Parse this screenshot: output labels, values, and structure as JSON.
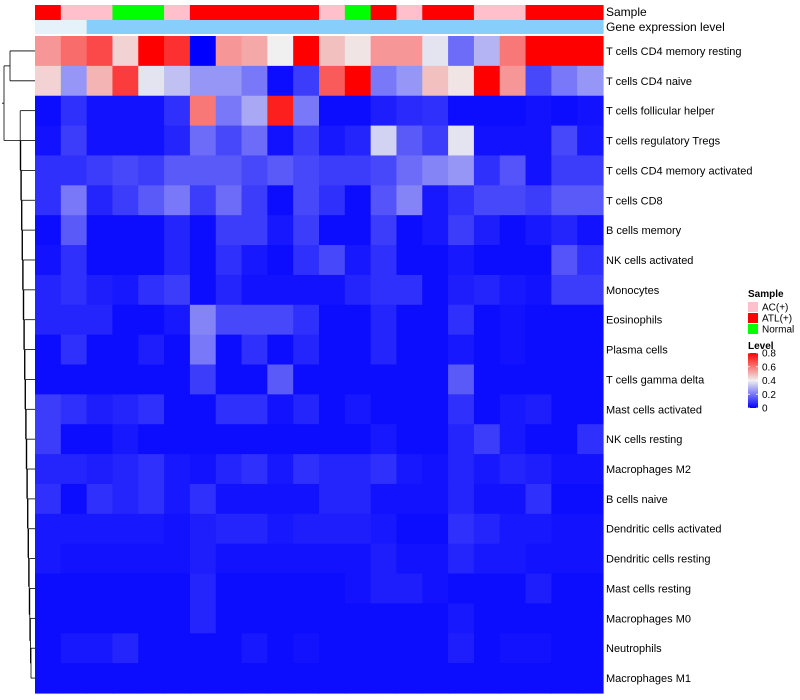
{
  "chart_data": {
    "type": "heatmap",
    "annotation_labels": [
      "Sample",
      "Gene expression level"
    ],
    "sample_groups": [
      "ATL(+)",
      "AC(+)",
      "AC(+)",
      "Normal",
      "Normal",
      "AC(+)",
      "ATL(+)",
      "ATL(+)",
      "ATL(+)",
      "ATL(+)",
      "ATL(+)",
      "AC(+)",
      "Normal",
      "ATL(+)",
      "AC(+)",
      "ATL(+)",
      "ATL(+)",
      "AC(+)",
      "AC(+)",
      "ATL(+)",
      "ATL(+)",
      "ATL(+)"
    ],
    "gene_expression_level": [
      0,
      0,
      1,
      1,
      1,
      1,
      1,
      1,
      1,
      1,
      1,
      1,
      1,
      1,
      1,
      1,
      1,
      1,
      1,
      1,
      1,
      1
    ],
    "rows": [
      "T cells CD4 memory resting",
      "T cells CD4 naive",
      "T cells follicular helper",
      "T cells regulatory  Tregs",
      "T cells CD4 memory activated",
      "T cells CD8",
      "B cells memory",
      "NK cells activated",
      "Monocytes",
      "Eosinophils",
      "Plasma cells",
      "T cells gamma delta",
      "Mast cells activated",
      "NK cells resting",
      "Macrophages M2",
      "B cells naive",
      "Dendritic cells activated",
      "Dendritic cells resting",
      "Mast cells resting",
      "Macrophages M0",
      "Neutrophils",
      "Macrophages M1"
    ],
    "values": [
      [
        0.55,
        0.62,
        0.68,
        0.45,
        0.8,
        0.72,
        0.0,
        0.55,
        0.52,
        0.4,
        0.8,
        0.48,
        0.42,
        0.55,
        0.55,
        0.38,
        0.18,
        0.3,
        0.6,
        0.8,
        0.8,
        0.8
      ],
      [
        0.45,
        0.25,
        0.5,
        0.7,
        0.38,
        0.32,
        0.25,
        0.25,
        0.2,
        0.02,
        0.1,
        0.65,
        0.8,
        0.2,
        0.25,
        0.48,
        0.42,
        0.8,
        0.55,
        0.12,
        0.2,
        0.25
      ],
      [
        0.02,
        0.08,
        0.03,
        0.03,
        0.03,
        0.08,
        0.6,
        0.2,
        0.28,
        0.75,
        0.2,
        0.02,
        0.02,
        0.05,
        0.07,
        0.08,
        0.02,
        0.02,
        0.02,
        0.03,
        0.02,
        0.03
      ],
      [
        0.03,
        0.1,
        0.03,
        0.03,
        0.03,
        0.06,
        0.18,
        0.12,
        0.18,
        0.03,
        0.1,
        0.04,
        0.06,
        0.35,
        0.15,
        0.1,
        0.38,
        0.03,
        0.03,
        0.03,
        0.12,
        0.04
      ],
      [
        0.08,
        0.08,
        0.1,
        0.12,
        0.1,
        0.15,
        0.15,
        0.15,
        0.12,
        0.15,
        0.12,
        0.1,
        0.1,
        0.12,
        0.18,
        0.22,
        0.25,
        0.08,
        0.14,
        0.03,
        0.1,
        0.1
      ],
      [
        0.08,
        0.2,
        0.06,
        0.1,
        0.15,
        0.2,
        0.1,
        0.18,
        0.1,
        0.02,
        0.12,
        0.08,
        0.02,
        0.14,
        0.22,
        0.04,
        0.08,
        0.12,
        0.12,
        0.1,
        0.15,
        0.15
      ],
      [
        0.02,
        0.15,
        0.02,
        0.02,
        0.02,
        0.06,
        0.02,
        0.1,
        0.1,
        0.04,
        0.1,
        0.02,
        0.02,
        0.1,
        0.02,
        0.04,
        0.1,
        0.05,
        0.02,
        0.04,
        0.06,
        0.03
      ],
      [
        0.03,
        0.08,
        0.02,
        0.02,
        0.02,
        0.06,
        0.02,
        0.08,
        0.04,
        0.02,
        0.08,
        0.12,
        0.04,
        0.08,
        0.02,
        0.02,
        0.04,
        0.02,
        0.02,
        0.02,
        0.14,
        0.08
      ],
      [
        0.06,
        0.08,
        0.05,
        0.04,
        0.08,
        0.1,
        0.02,
        0.06,
        0.03,
        0.03,
        0.03,
        0.03,
        0.06,
        0.08,
        0.08,
        0.02,
        0.05,
        0.06,
        0.04,
        0.03,
        0.1,
        0.1
      ],
      [
        0.06,
        0.06,
        0.06,
        0.02,
        0.02,
        0.04,
        0.22,
        0.12,
        0.12,
        0.12,
        0.08,
        0.02,
        0.02,
        0.06,
        0.02,
        0.02,
        0.08,
        0.02,
        0.03,
        0.02,
        0.02,
        0.02
      ],
      [
        0.02,
        0.08,
        0.02,
        0.02,
        0.05,
        0.02,
        0.2,
        0.02,
        0.08,
        0.02,
        0.06,
        0.02,
        0.02,
        0.06,
        0.02,
        0.02,
        0.04,
        0.02,
        0.03,
        0.02,
        0.02,
        0.02
      ],
      [
        0.02,
        0.02,
        0.02,
        0.02,
        0.02,
        0.02,
        0.1,
        0.02,
        0.02,
        0.15,
        0.02,
        0.02,
        0.02,
        0.02,
        0.02,
        0.02,
        0.15,
        0.02,
        0.02,
        0.02,
        0.02,
        0.02
      ],
      [
        0.1,
        0.08,
        0.05,
        0.06,
        0.08,
        0.02,
        0.02,
        0.08,
        0.08,
        0.03,
        0.06,
        0.02,
        0.04,
        0.02,
        0.02,
        0.02,
        0.08,
        0.02,
        0.04,
        0.05,
        0.02,
        0.02
      ],
      [
        0.1,
        0.02,
        0.02,
        0.04,
        0.02,
        0.02,
        0.02,
        0.02,
        0.02,
        0.02,
        0.02,
        0.02,
        0.02,
        0.04,
        0.02,
        0.02,
        0.06,
        0.1,
        0.04,
        0.02,
        0.02,
        0.08
      ],
      [
        0.06,
        0.06,
        0.05,
        0.06,
        0.08,
        0.04,
        0.03,
        0.06,
        0.08,
        0.04,
        0.08,
        0.06,
        0.06,
        0.08,
        0.04,
        0.03,
        0.06,
        0.04,
        0.06,
        0.05,
        0.03,
        0.03
      ],
      [
        0.08,
        0.02,
        0.08,
        0.06,
        0.08,
        0.04,
        0.08,
        0.03,
        0.03,
        0.03,
        0.03,
        0.06,
        0.06,
        0.03,
        0.03,
        0.03,
        0.06,
        0.03,
        0.03,
        0.08,
        0.02,
        0.02
      ],
      [
        0.04,
        0.04,
        0.04,
        0.04,
        0.04,
        0.03,
        0.05,
        0.06,
        0.06,
        0.04,
        0.05,
        0.05,
        0.05,
        0.04,
        0.02,
        0.02,
        0.08,
        0.06,
        0.04,
        0.04,
        0.03,
        0.03
      ],
      [
        0.04,
        0.03,
        0.03,
        0.03,
        0.03,
        0.03,
        0.05,
        0.03,
        0.03,
        0.03,
        0.03,
        0.03,
        0.03,
        0.05,
        0.03,
        0.03,
        0.06,
        0.04,
        0.04,
        0.03,
        0.03,
        0.03
      ],
      [
        0.02,
        0.02,
        0.02,
        0.02,
        0.02,
        0.02,
        0.06,
        0.02,
        0.02,
        0.02,
        0.02,
        0.02,
        0.03,
        0.05,
        0.05,
        0.03,
        0.02,
        0.02,
        0.02,
        0.05,
        0.02,
        0.02
      ],
      [
        0.02,
        0.02,
        0.02,
        0.02,
        0.02,
        0.02,
        0.06,
        0.02,
        0.02,
        0.02,
        0.02,
        0.02,
        0.02,
        0.02,
        0.02,
        0.02,
        0.04,
        0.02,
        0.02,
        0.02,
        0.02,
        0.02
      ],
      [
        0.02,
        0.04,
        0.04,
        0.06,
        0.02,
        0.02,
        0.02,
        0.02,
        0.04,
        0.02,
        0.03,
        0.02,
        0.02,
        0.02,
        0.02,
        0.02,
        0.05,
        0.02,
        0.03,
        0.03,
        0.02,
        0.02
      ],
      [
        0.02,
        0.02,
        0.02,
        0.02,
        0.02,
        0.02,
        0.02,
        0.02,
        0.02,
        0.02,
        0.02,
        0.02,
        0.02,
        0.02,
        0.02,
        0.02,
        0.02,
        0.02,
        0.02,
        0.02,
        0.02,
        0.02
      ]
    ],
    "color_scale": {
      "min_color": "#0000ff",
      "mid_color": "#f0f0f0",
      "max_color": "#ff0000",
      "range": [
        0,
        0.8
      ]
    },
    "group_colors": {
      "AC(+)": "#ffc0cb",
      "ATL(+)": "#ff0000",
      "Normal": "#00ff00"
    },
    "expression_level_colors": [
      "#e6f2fa",
      "#87cefa"
    ],
    "legend": {
      "sample_title": "Sample",
      "sample_entries": [
        "AC(+)",
        "ATL(+)",
        "Normal"
      ],
      "level_title": "Level",
      "level_ticks": [
        0.8,
        0.6,
        0.4,
        0.2,
        0
      ],
      "level_tick_labels": [
        "0.8",
        "0.6",
        "0.4",
        "0.2",
        "0"
      ]
    },
    "xlabel": "",
    "ylabel": "",
    "title": ""
  }
}
